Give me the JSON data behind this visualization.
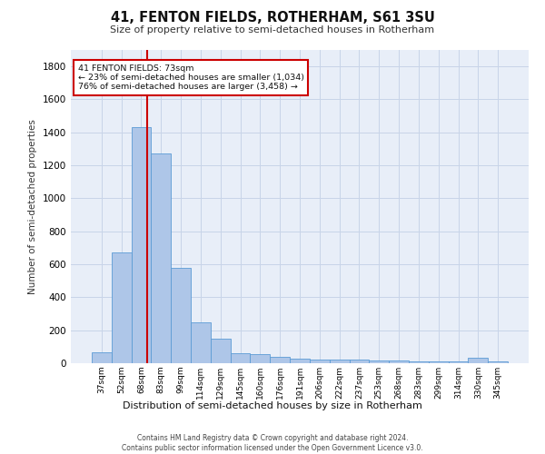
{
  "title": "41, FENTON FIELDS, ROTHERHAM, S61 3SU",
  "subtitle": "Size of property relative to semi-detached houses in Rotherham",
  "xlabel": "Distribution of semi-detached houses by size in Rotherham",
  "ylabel": "Number of semi-detached properties",
  "categories": [
    "37sqm",
    "52sqm",
    "68sqm",
    "83sqm",
    "99sqm",
    "114sqm",
    "129sqm",
    "145sqm",
    "160sqm",
    "176sqm",
    "191sqm",
    "206sqm",
    "222sqm",
    "237sqm",
    "253sqm",
    "268sqm",
    "283sqm",
    "299sqm",
    "314sqm",
    "330sqm",
    "345sqm"
  ],
  "values": [
    65,
    670,
    1430,
    1270,
    580,
    250,
    150,
    60,
    55,
    40,
    30,
    20,
    20,
    20,
    15,
    15,
    10,
    10,
    10,
    35,
    10
  ],
  "bar_color": "#aec6e8",
  "bar_edge_color": "#5b9bd5",
  "grid_color": "#c8d4e8",
  "background_color": "#e8eef8",
  "annotation_box_color": "#ffffff",
  "annotation_box_edge": "#cc0000",
  "property_line_color": "#cc0000",
  "property_label": "41 FENTON FIELDS: 73sqm",
  "pct_smaller": 23,
  "pct_larger": 76,
  "n_smaller": "1,034",
  "n_larger": "3,458",
  "property_line_x": 2.3,
  "ylim": [
    0,
    1900
  ],
  "yticks": [
    0,
    200,
    400,
    600,
    800,
    1000,
    1200,
    1400,
    1600,
    1800
  ],
  "footer_line1": "Contains HM Land Registry data © Crown copyright and database right 2024.",
  "footer_line2": "Contains public sector information licensed under the Open Government Licence v3.0."
}
